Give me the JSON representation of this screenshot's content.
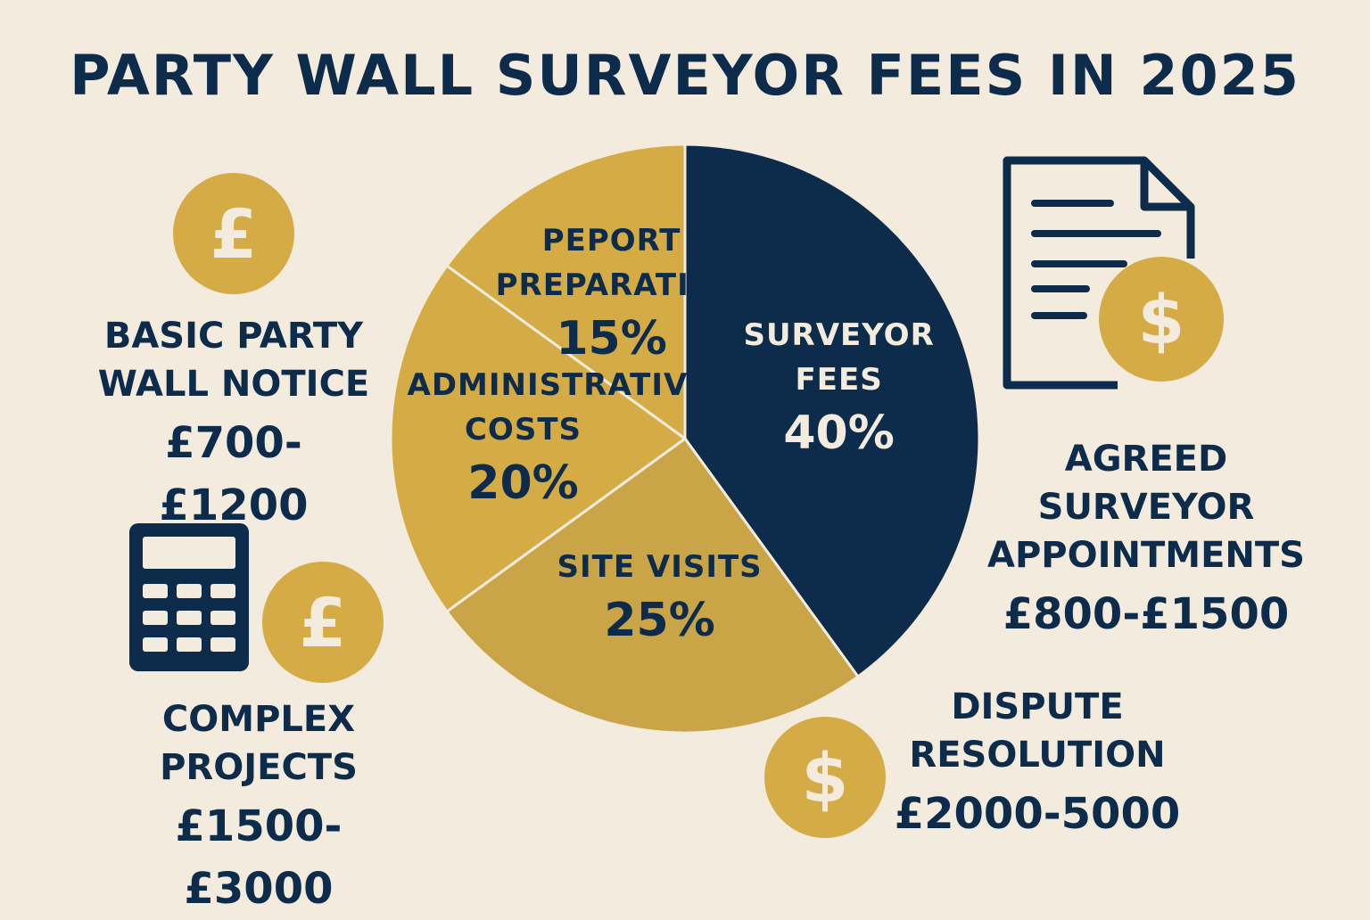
{
  "chart_data": {
    "type": "pie",
    "title": "PARTY WALL SURVEYOR FEES IN 2025",
    "categories": [
      "SURVEYOR FEES",
      "SITE VISITS",
      "ADMINISTRATIVE COSTS",
      "PEPORT PREPARATION"
    ],
    "values": [
      40,
      25,
      20,
      15
    ],
    "value_labels": [
      "40%",
      "25%",
      "20%",
      "15%"
    ],
    "colors": [
      "#0d2b4a",
      "#c9a548",
      "#d4ab45",
      "#d4ab45"
    ],
    "annotations": [
      {
        "title": "BASIC PARTY WALL NOTICE",
        "price": "£700-£1200",
        "coin": "£"
      },
      {
        "title": "COMPLEX PROJECTS",
        "price": "£1500-£3000",
        "coin": "£"
      },
      {
        "title": "AGREED SURVEYOR APPOINTMENTS",
        "price": "£800-£1500",
        "coin": "$"
      },
      {
        "title": "DISPUTE RESOLUTION",
        "price": "£2000-5000",
        "coin": "$"
      }
    ]
  }
}
